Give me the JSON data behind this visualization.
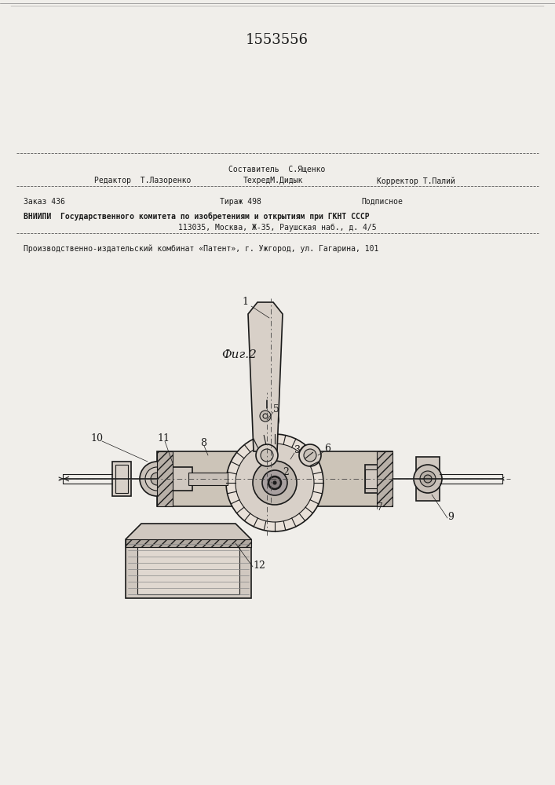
{
  "patent_number": "1553556",
  "fig_label": "Фиг.2",
  "background_color": "#f0eeea",
  "line_color": "#1a1a1a",
  "hatch_color": "#1a1a1a",
  "footer": {
    "sostavitel": "Составитель  С.Ященко",
    "redaktor": "Редактор  Т.Лазоренко",
    "tekhred": "ТехредМ.Дидык",
    "korrektor": "Корректор Т.Палий",
    "zakaz": "Заказ 436",
    "tirazh": "Тираж 498",
    "podpisnoe": "Подписное",
    "vniigi": "ВНИИПИ  Государственного комитета по изобретениям и открытиям при ГКНТ СССР",
    "address": "113035, Москва, Ж-35, Раушская наб., д. 4/5",
    "proizv": "Производственно-издательский комбинат «Патент», г. Ужгород, ул. Гагарина, 101"
  }
}
